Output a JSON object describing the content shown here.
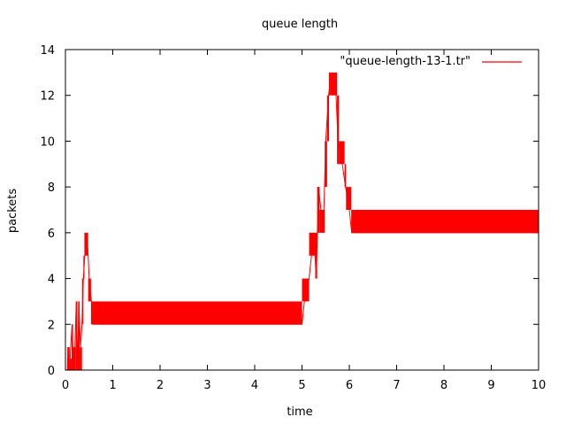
{
  "chart_data": {
    "type": "line",
    "title": "queue length",
    "xlabel": "time",
    "ylabel": "packets",
    "xlim": [
      0,
      10
    ],
    "ylim": [
      0,
      14
    ],
    "x_ticks": [
      0,
      1,
      2,
      3,
      4,
      5,
      6,
      7,
      8,
      9,
      10
    ],
    "y_ticks": [
      0,
      2,
      4,
      6,
      8,
      10,
      12,
      14
    ],
    "legend": {
      "position": "top-right"
    },
    "series": [
      {
        "name": "\"queue-length-13-1.tr\"",
        "color": "#ff0000",
        "bands": [
          {
            "x0": 0.04,
            "x1": 0.09,
            "lo": 0,
            "hi": 1
          },
          {
            "x0": 0.09,
            "x1": 0.13,
            "lo": 0,
            "hi": 0.5
          },
          {
            "x0": 0.13,
            "x1": 0.16,
            "lo": 0,
            "hi": 2
          },
          {
            "x0": 0.16,
            "x1": 0.22,
            "lo": 0,
            "hi": 1
          },
          {
            "x0": 0.22,
            "x1": 0.25,
            "lo": 0,
            "hi": 3
          },
          {
            "x0": 0.25,
            "x1": 0.27,
            "lo": 0,
            "hi": 1
          },
          {
            "x0": 0.27,
            "x1": 0.3,
            "lo": 0,
            "hi": 3
          },
          {
            "x0": 0.3,
            "x1": 0.35,
            "lo": 0,
            "hi": 1
          },
          {
            "x0": 0.35,
            "x1": 0.38,
            "lo": 2,
            "hi": 4
          },
          {
            "x0": 0.38,
            "x1": 0.4,
            "lo": 4,
            "hi": 5
          },
          {
            "x0": 0.4,
            "x1": 0.48,
            "lo": 5,
            "hi": 6
          },
          {
            "x0": 0.48,
            "x1": 0.54,
            "lo": 3,
            "hi": 4
          },
          {
            "x0": 0.54,
            "x1": 0.58,
            "lo": 2,
            "hi": 3
          },
          {
            "x0": 0.58,
            "x1": 5.0,
            "lo": 2,
            "hi": 3
          },
          {
            "x0": 5.0,
            "x1": 5.15,
            "lo": 3,
            "hi": 4
          },
          {
            "x0": 5.15,
            "x1": 5.28,
            "lo": 5,
            "hi": 6
          },
          {
            "x0": 5.28,
            "x1": 5.32,
            "lo": 4,
            "hi": 6
          },
          {
            "x0": 5.32,
            "x1": 5.37,
            "lo": 6,
            "hi": 8
          },
          {
            "x0": 5.37,
            "x1": 5.48,
            "lo": 6,
            "hi": 7
          },
          {
            "x0": 5.48,
            "x1": 5.53,
            "lo": 8,
            "hi": 10
          },
          {
            "x0": 5.53,
            "x1": 5.57,
            "lo": 10,
            "hi": 12
          },
          {
            "x0": 5.57,
            "x1": 5.6,
            "lo": 12,
            "hi": 13
          },
          {
            "x0": 5.6,
            "x1": 5.74,
            "lo": 12,
            "hi": 13
          },
          {
            "x0": 5.74,
            "x1": 5.78,
            "lo": 9,
            "hi": 12
          },
          {
            "x0": 5.78,
            "x1": 5.9,
            "lo": 9,
            "hi": 10
          },
          {
            "x0": 5.9,
            "x1": 5.93,
            "lo": 8,
            "hi": 9
          },
          {
            "x0": 5.93,
            "x1": 6.04,
            "lo": 7,
            "hi": 8
          },
          {
            "x0": 6.04,
            "x1": 10.0,
            "lo": 6,
            "hi": 7
          }
        ],
        "line": [
          [
            0.0,
            0
          ],
          [
            0.04,
            0
          ],
          [
            0.06,
            1
          ],
          [
            0.09,
            0
          ],
          [
            0.11,
            1
          ],
          [
            0.14,
            2
          ],
          [
            0.17,
            0
          ],
          [
            0.2,
            1
          ],
          [
            0.23,
            3
          ],
          [
            0.26,
            0
          ],
          [
            0.28,
            3
          ],
          [
            0.32,
            1
          ],
          [
            0.35,
            2
          ],
          [
            0.38,
            4
          ],
          [
            0.41,
            5
          ],
          [
            0.45,
            6
          ],
          [
            0.48,
            5
          ],
          [
            0.5,
            4
          ],
          [
            0.55,
            3
          ],
          [
            0.58,
            2
          ],
          [
            5.0,
            2
          ],
          [
            5.05,
            3
          ],
          [
            5.15,
            4
          ],
          [
            5.25,
            6
          ],
          [
            5.3,
            4
          ],
          [
            5.35,
            8
          ],
          [
            5.45,
            6
          ],
          [
            5.5,
            10
          ],
          [
            5.56,
            12
          ],
          [
            5.62,
            13
          ],
          [
            5.72,
            12
          ],
          [
            5.76,
            10
          ],
          [
            5.85,
            9
          ],
          [
            5.92,
            8
          ],
          [
            6.0,
            7
          ],
          [
            6.05,
            6
          ],
          [
            10.0,
            6
          ]
        ]
      }
    ]
  }
}
